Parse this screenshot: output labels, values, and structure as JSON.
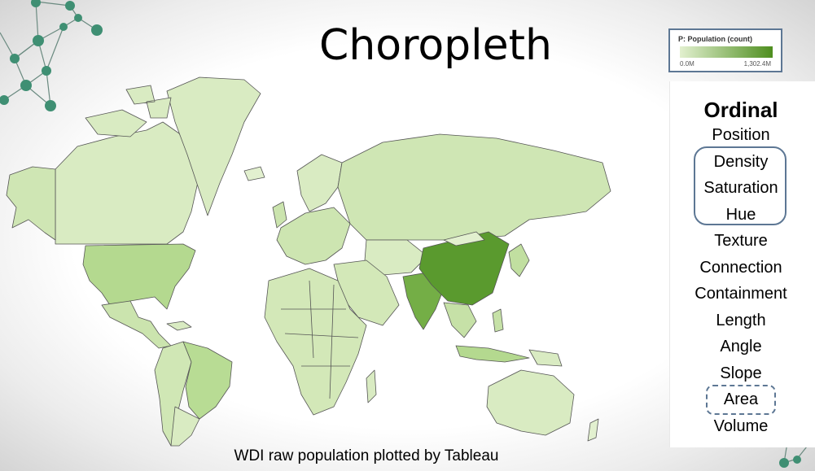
{
  "slide": {
    "title": "Choropleth",
    "caption": "WDI raw population plotted by Tableau"
  },
  "legend": {
    "title": "P: Population (count)",
    "min_label": "0.0M",
    "max_label": "1,302.4M",
    "color_low": "#e2f0cf",
    "color_high": "#4e8e1f"
  },
  "encodings": {
    "heading": "Ordinal",
    "items": [
      "Position",
      "Density",
      "Saturation",
      "Hue",
      "Texture",
      "Connection",
      "Containment",
      "Length",
      "Angle",
      "Slope",
      "Area",
      "Volume"
    ],
    "highlighted_solid": [
      "Density",
      "Saturation",
      "Hue"
    ],
    "highlighted_dashed": [
      "Area"
    ]
  },
  "map": {
    "type": "choropleth world map",
    "highest_population": [
      "China",
      "India"
    ],
    "medium_population": [
      "United States",
      "Brazil",
      "Indonesia",
      "Russia"
    ]
  },
  "colors": {
    "frame": "#5d7794",
    "deco_node": "#3f8f73"
  }
}
